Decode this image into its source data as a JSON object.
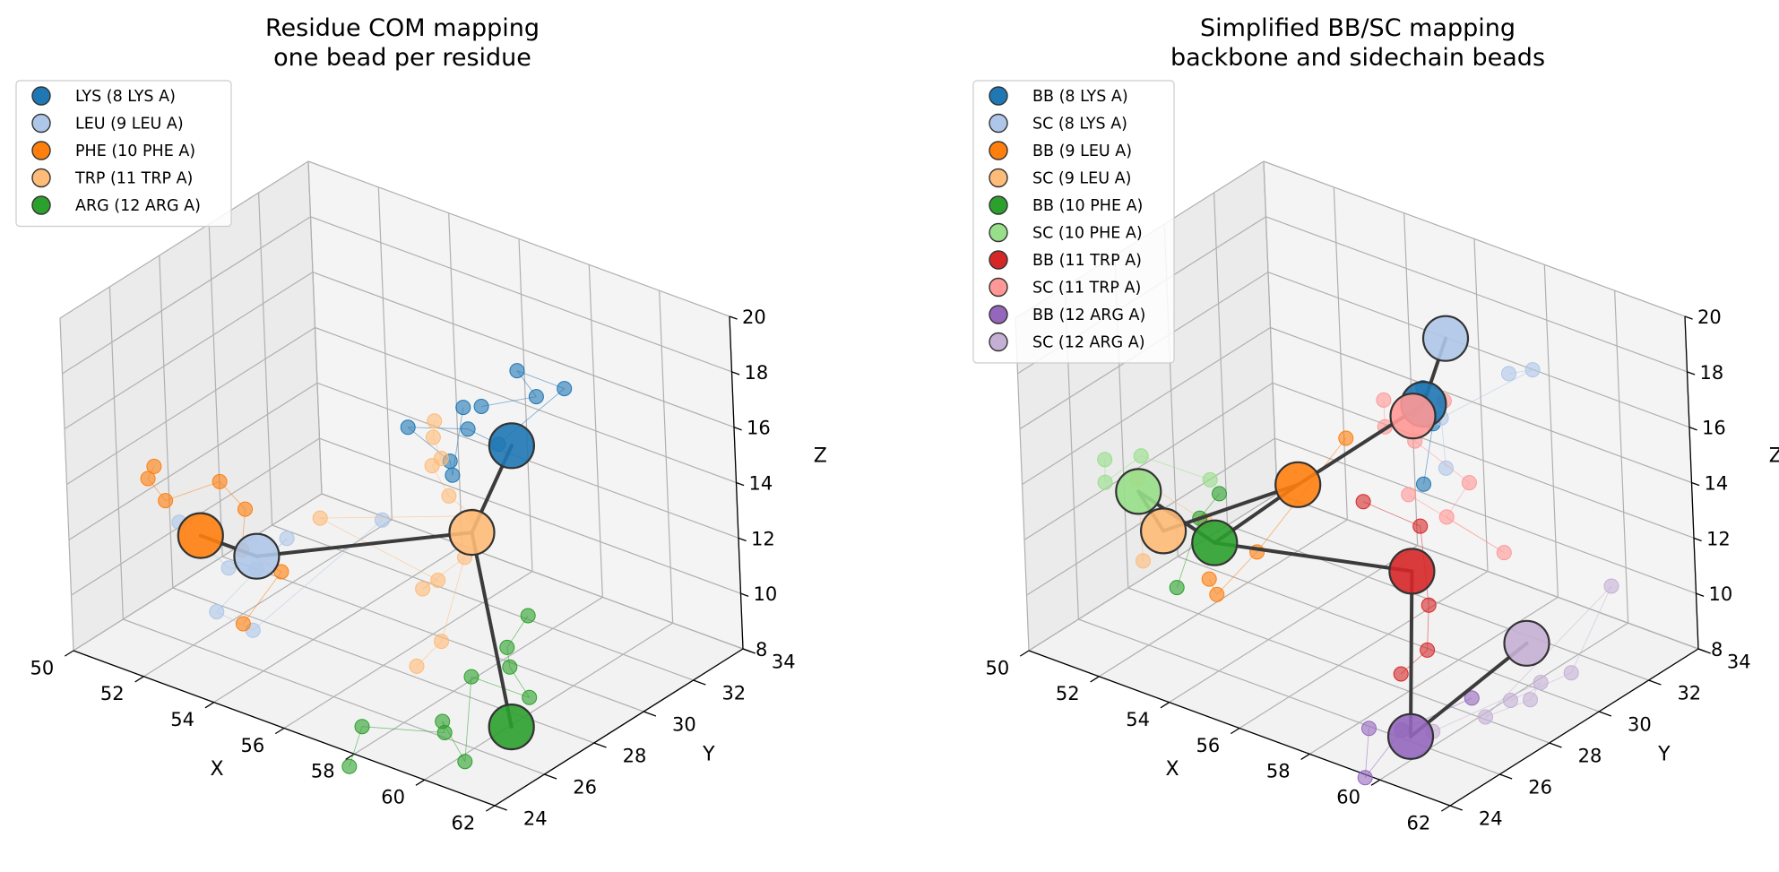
{
  "chart_data": [
    {
      "type": "scatter",
      "projection": "3d",
      "title": "Residue COM mapping",
      "subtitle": "one bead per residue",
      "xlabel": "X",
      "ylabel": "Y",
      "zlabel": "Z",
      "xlim": [
        50,
        62
      ],
      "ylim": [
        24,
        34
      ],
      "zlim": [
        8,
        20
      ],
      "xticks": [
        "50",
        "52",
        "54",
        "56",
        "58",
        "60",
        "62"
      ],
      "yticks": [
        "24",
        "26",
        "28",
        "30",
        "32",
        "34"
      ],
      "zticks": [
        "8",
        "10",
        "12",
        "14",
        "16",
        "18",
        "20"
      ],
      "grid": true,
      "legend_position": "upper-left",
      "legend": [
        {
          "label": "LYS (8 LYS A)",
          "color": "#1f77b4"
        },
        {
          "label": "LEU (9 LEU A)",
          "color": "#aec7e8"
        },
        {
          "label": "PHE (10 PHE A)",
          "color": "#ff7f0e"
        },
        {
          "label": "TRP (11 TRP A)",
          "color": "#ffbb78"
        },
        {
          "label": "ARG (12 ARG A)",
          "color": "#2ca02c"
        }
      ],
      "beads": [
        {
          "name": "LYS",
          "color": "#1f77b4",
          "xyz": [
            58.2,
            30.4,
            15.6
          ]
        },
        {
          "name": "LEU",
          "color": "#aec7e8",
          "xyz": [
            53.2,
            27.0,
            11.2
          ]
        },
        {
          "name": "PHE",
          "color": "#ff7f0e",
          "xyz": [
            51.6,
            27.0,
            11.2
          ]
        },
        {
          "name": "TRP",
          "color": "#ffbb78",
          "xyz": [
            56.8,
            30.6,
            11.7
          ]
        },
        {
          "name": "ARG",
          "color": "#2ca02c",
          "xyz": [
            58.6,
            29.4,
            6.2
          ]
        }
      ],
      "bonds": [
        [
          0,
          3
        ],
        [
          3,
          1
        ],
        [
          1,
          2
        ],
        [
          3,
          4
        ]
      ],
      "atoms": [
        {
          "color": "#1f77b4",
          "xyz": [
            [
              58.4,
              29.0,
              17.9
            ],
            [
              60.0,
              29.0,
              19.0
            ],
            [
              59.4,
              29.1,
              19.6
            ],
            [
              60.6,
              29.3,
              19.4
            ],
            [
              58.4,
              29.6,
              16.2
            ],
            [
              57.1,
              30.2,
              15.8
            ],
            [
              55.0,
              30.7,
              14.6
            ],
            [
              56.4,
              30.4,
              14.2
            ],
            [
              56.6,
              30.2,
              13.9
            ],
            [
              56.4,
              31.0,
              15.8
            ]
          ]
        },
        {
          "color": "#aec7e8",
          "xyz": [
            [
              51.0,
              27.0,
              11.4
            ],
            [
              52.3,
              27.1,
              10.3
            ],
            [
              53.4,
              26.7,
              11.0
            ],
            [
              53.8,
              27.4,
              11.9
            ],
            [
              52.2,
              26.7,
              8.9
            ],
            [
              53.3,
              26.6,
              8.8
            ],
            [
              55.4,
              29.0,
              12.4
            ]
          ]
        },
        {
          "color": "#ff7f0e",
          "xyz": [
            [
              49.6,
              28.0,
              12.2
            ],
            [
              50.0,
              27.2,
              12.4
            ],
            [
              50.7,
              26.9,
              12.1
            ],
            [
              51.7,
              27.7,
              12.8
            ],
            [
              52.7,
              27.3,
              12.5
            ],
            [
              53.0,
              26.7,
              11.5
            ],
            [
              53.6,
              27.4,
              10.6
            ],
            [
              53.1,
              26.5,
              9.0
            ]
          ]
        },
        {
          "color": "#ffbb78",
          "xyz": [
            [
              55.7,
              30.8,
              15.1
            ],
            [
              55.5,
              31.0,
              14.3
            ],
            [
              56.0,
              30.6,
              14.0
            ],
            [
              55.8,
              30.5,
              13.7
            ],
            [
              56.4,
              30.3,
              13.0
            ],
            [
              57.0,
              30.4,
              12.5
            ],
            [
              53.9,
              28.6,
              12.0
            ],
            [
              56.5,
              29.6,
              10.4
            ],
            [
              55.9,
              29.8,
              9.7
            ],
            [
              57.3,
              29.6,
              11.6
            ],
            [
              56.6,
              29.5,
              8.3
            ],
            [
              56.3,
              28.9,
              7.6
            ]
          ]
        },
        {
          "color": "#2ca02c",
          "xyz": [
            [
              58.4,
              30.5,
              9.5
            ],
            [
              58.2,
              29.9,
              8.6
            ],
            [
              58.4,
              29.7,
              8.1
            ],
            [
              59.3,
              29.2,
              7.7
            ],
            [
              57.5,
              29.4,
              7.5
            ],
            [
              58.1,
              28.2,
              5.4
            ],
            [
              57.2,
              28.6,
              6.2
            ],
            [
              57.4,
              28.4,
              6.0
            ],
            [
              55.9,
              27.2,
              6.2
            ],
            [
              56.0,
              26.5,
              5.2
            ]
          ]
        }
      ]
    },
    {
      "type": "scatter",
      "projection": "3d",
      "title": "Simplified BB/SC mapping",
      "subtitle": "backbone and sidechain beads",
      "xlabel": "X",
      "ylabel": "Y",
      "zlabel": "Z",
      "xlim": [
        50,
        62
      ],
      "ylim": [
        24,
        34
      ],
      "zlim": [
        8,
        20
      ],
      "xticks": [
        "50",
        "52",
        "54",
        "56",
        "58",
        "60",
        "62"
      ],
      "yticks": [
        "24",
        "26",
        "28",
        "30",
        "32",
        "34"
      ],
      "zticks": [
        "8",
        "10",
        "12",
        "14",
        "16",
        "18",
        "20"
      ],
      "grid": true,
      "legend_position": "upper-left",
      "legend": [
        {
          "label": "BB (8 LYS A)",
          "color": "#1f77b4"
        },
        {
          "label": "SC (8 LYS A)",
          "color": "#aec7e8"
        },
        {
          "label": "BB (9 LEU A)",
          "color": "#ff7f0e"
        },
        {
          "label": "SC (9 LEU A)",
          "color": "#ffbb78"
        },
        {
          "label": "BB (10 PHE A)",
          "color": "#2ca02c"
        },
        {
          "label": "SC (10 PHE A)",
          "color": "#98df8a"
        },
        {
          "label": "BB (11 TRP A)",
          "color": "#d62728"
        },
        {
          "label": "SC (11 TRP A)",
          "color": "#ff9896"
        },
        {
          "label": "BB (12 ARG A)",
          "color": "#9467bd"
        },
        {
          "label": "SC (12 ARG A)",
          "color": "#c5b0d5"
        }
      ],
      "beads": [
        {
          "name": "BB 8",
          "color": "#1f77b4",
          "xyz": [
            56.4,
            31.2,
            15.8
          ]
        },
        {
          "name": "SC 8",
          "color": "#aec7e8",
          "xyz": [
            58.0,
            30.0,
            19.6
          ]
        },
        {
          "name": "BB 9",
          "color": "#ff7f0e",
          "xyz": [
            54.0,
            29.4,
            12.8
          ]
        },
        {
          "name": "SC 9",
          "color": "#ffbb78",
          "xyz": [
            51.6,
            27.3,
            11.2
          ]
        },
        {
          "name": "BB 10",
          "color": "#2ca02c",
          "xyz": [
            52.7,
            27.8,
            11.0
          ]
        },
        {
          "name": "SC 10",
          "color": "#98df8a",
          "xyz": [
            51.0,
            27.2,
            12.4
          ]
        },
        {
          "name": "BB 11",
          "color": "#d62728",
          "xyz": [
            56.9,
            29.8,
            10.8
          ]
        },
        {
          "name": "SC 11",
          "color": "#ff9896",
          "xyz": [
            56.3,
            30.9,
            15.5
          ]
        },
        {
          "name": "BB 12",
          "color": "#9467bd",
          "xyz": [
            57.7,
            28.4,
            6.0
          ]
        },
        {
          "name": "SC 12",
          "color": "#c5b0d5",
          "xyz": [
            59.4,
            30.8,
            8.8
          ]
        }
      ],
      "bonds": [
        [
          0,
          1
        ],
        [
          0,
          2
        ],
        [
          2,
          4
        ],
        [
          4,
          6
        ],
        [
          6,
          8
        ],
        [
          0,
          7
        ],
        [
          2,
          3
        ],
        [
          4,
          5
        ],
        [
          8,
          9
        ],
        [
          3,
          5
        ]
      ],
      "atoms": [
        {
          "color": "#1f77b4",
          "xyz": [
            [
              56.4,
              31.2,
              16.4
            ],
            [
              56.8,
              31.0,
              15.4
            ],
            [
              56.9,
              30.4,
              13.6
            ]
          ]
        },
        {
          "color": "#aec7e8",
          "xyz": [
            [
              60.3,
              29.3,
              19.8
            ],
            [
              60.7,
              29.7,
              19.9
            ],
            [
              58.0,
              29.7,
              16.9
            ],
            [
              58.3,
              29.4,
              15.4
            ]
          ]
        },
        {
          "color": "#ff7f0e",
          "xyz": [
            [
              55.0,
              30.0,
              14.6
            ],
            [
              53.4,
              28.5,
              10.6
            ],
            [
              53.0,
              27.4,
              9.5
            ],
            [
              52.5,
              27.8,
              9.6
            ]
          ]
        },
        {
          "color": "#ffbb78",
          "xyz": [
            [
              51.2,
              27.0,
              10.1
            ],
            [
              50.7,
              27.6,
              12.5
            ],
            [
              52.3,
              28.0,
              11.5
            ]
          ]
        },
        {
          "color": "#2ca02c",
          "xyz": [
            [
              52.6,
              28.2,
              12.5
            ],
            [
              52.3,
              27.8,
              11.7
            ],
            [
              52.0,
              27.2,
              9.4
            ]
          ]
        },
        {
          "color": "#98df8a",
          "xyz": [
            [
              49.4,
              28.1,
              12.3
            ],
            [
              49.9,
              27.4,
              12.1
            ],
            [
              50.6,
              27.9,
              13.1
            ],
            [
              52.2,
              28.4,
              12.7
            ]
          ]
        },
        {
          "color": "#d62728",
          "xyz": [
            [
              55.5,
              29.9,
              12.6
            ],
            [
              56.9,
              30.2,
              12.2
            ],
            [
              57.2,
              30.0,
              9.6
            ],
            [
              57.4,
              29.6,
              8.3
            ],
            [
              57.2,
              28.8,
              7.8
            ]
          ]
        },
        {
          "color": "#ff9896",
          "xyz": [
            [
              55.4,
              31.0,
              15.6
            ],
            [
              55.7,
              30.6,
              15.0
            ],
            [
              57.0,
              31.2,
              16.2
            ],
            [
              56.4,
              30.8,
              14.7
            ],
            [
              58.0,
              30.7,
              14.0
            ],
            [
              57.6,
              30.3,
              12.8
            ],
            [
              59.0,
              30.6,
              12.0
            ],
            [
              56.6,
              30.2,
              13.2
            ]
          ]
        },
        {
          "color": "#9467bd",
          "xyz": [
            [
              56.8,
              28.0,
              6.1
            ],
            [
              57.0,
              27.5,
              4.7
            ],
            [
              57.6,
              28.2,
              6.3
            ],
            [
              59.0,
              29.1,
              7.6
            ]
          ]
        },
        {
          "color": "#c5b0d5",
          "xyz": [
            [
              58.2,
              28.6,
              6.3
            ],
            [
              60.2,
              30.2,
              8.1
            ],
            [
              60.1,
              29.9,
              7.6
            ],
            [
              59.3,
              29.2,
              7.0
            ],
            [
              61.4,
              31.5,
              11.4
            ],
            [
              60.8,
              30.6,
              8.5
            ],
            [
              59.6,
              29.8,
              7.4
            ]
          ]
        }
      ]
    }
  ]
}
